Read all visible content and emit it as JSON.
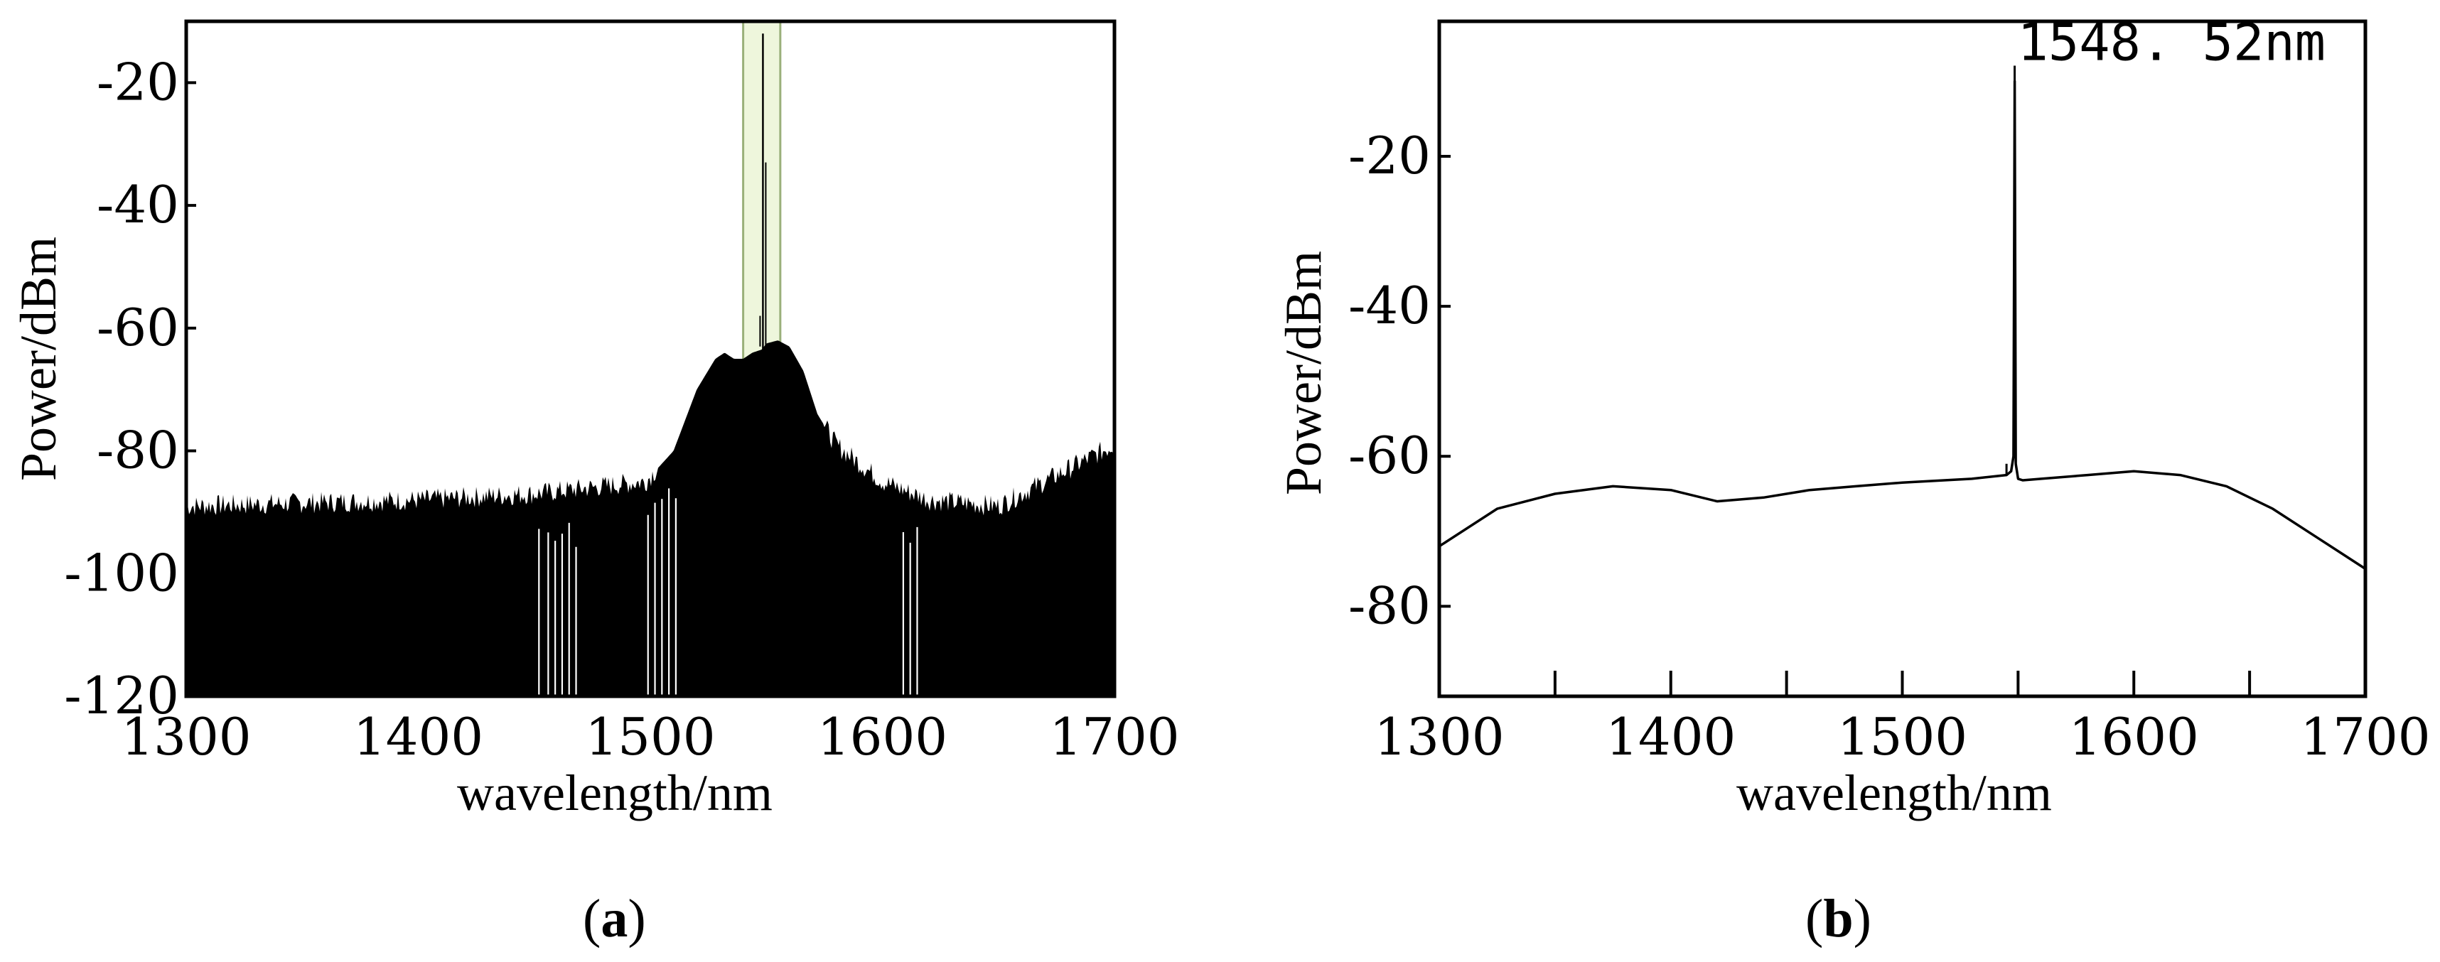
{
  "chart_data": [
    {
      "type": "line",
      "panel": "a",
      "xlabel": "wavelength/nm",
      "ylabel": "Power/dBm",
      "xlim": [
        1300,
        1700
      ],
      "ylim": [
        -120,
        -10
      ],
      "x_ticks": [
        "1300",
        "1400",
        "1500",
        "1600",
        "1700"
      ],
      "y_ticks": [
        "-20",
        "-40",
        "-60",
        "-80",
        "-100",
        "-120"
      ],
      "grid": false,
      "highlight_region": {
        "x": [
          1540,
          1556
        ],
        "y": [
          -67,
          -10
        ],
        "color": "#eef6dc"
      },
      "series": [
        {
          "x": [
            1300,
            1350,
            1400,
            1450,
            1498,
            1510,
            1520,
            1528,
            1532,
            1536,
            1540,
            1544,
            1548,
            1548.52,
            1550,
            1555,
            1560,
            1566,
            1572,
            1580,
            1590,
            1600,
            1620,
            1650,
            1700
          ],
          "y": [
            -89,
            -88.5,
            -88,
            -87,
            -85,
            -80,
            -70,
            -65,
            -64,
            -65,
            -65,
            -64,
            -63.5,
            -12,
            -62.5,
            -62,
            -63,
            -67,
            -74,
            -79,
            -82,
            -85,
            -88,
            -89,
            -79
          ],
          "noise_floor": -120
        }
      ]
    },
    {
      "type": "line",
      "panel": "b",
      "xlabel": "wavelength/nm",
      "ylabel": "Power/dBm",
      "xlim": [
        1300,
        1700
      ],
      "ylim": [
        -92,
        -2
      ],
      "x_ticks": [
        "1300",
        "1400",
        "1500",
        "1600",
        "1700"
      ],
      "y_ticks": [
        "-20",
        "-40",
        "-60",
        "-80"
      ],
      "minor_ticks": [
        1350,
        1450,
        1550,
        1650
      ],
      "grid": false,
      "annotation": {
        "text": "1548. 52nm",
        "x": 1548.52,
        "y": -10
      },
      "series": [
        {
          "x": [
            1300,
            1325,
            1350,
            1375,
            1400,
            1420,
            1440,
            1460,
            1480,
            1500,
            1530,
            1545,
            1547,
            1548,
            1548.52,
            1549,
            1550,
            1552,
            1560,
            1580,
            1600,
            1620,
            1640,
            1660,
            1680,
            1700
          ],
          "y": [
            -72,
            -67,
            -65,
            -64,
            -64.5,
            -66,
            -65.5,
            -64.5,
            -64,
            -63.5,
            -63,
            -62.5,
            -62,
            -60,
            -10,
            -61,
            -63,
            -63.2,
            -63,
            -62.5,
            -62,
            -62.5,
            -64,
            -67,
            -71,
            -75
          ]
        }
      ]
    }
  ],
  "labels": {
    "a": {
      "open": "(",
      "letter": "a",
      "close": ")"
    },
    "b": {
      "open": "(",
      "letter": "b",
      "close": ")"
    }
  }
}
